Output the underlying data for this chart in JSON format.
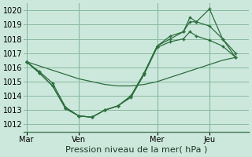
{
  "background_color": "#cce8dc",
  "grid_color": "#88b8a0",
  "line_color": "#2d6e3e",
  "title": "Pression niveau de la mer( hPa )",
  "ylim": [
    1011.5,
    1020.5
  ],
  "yticks": [
    1012,
    1013,
    1014,
    1015,
    1016,
    1017,
    1018,
    1019,
    1020
  ],
  "xtick_labels": [
    "Mar",
    "Ven",
    "Mer",
    "Jeu"
  ],
  "xtick_positions": [
    0,
    2,
    5,
    7
  ],
  "vline_positions": [
    0,
    2,
    5,
    7
  ],
  "xlim": [
    -0.1,
    8.5
  ],
  "series": [
    {
      "x": [
        0,
        0.5,
        1.0,
        1.5,
        2.0,
        2.5,
        3.0,
        3.5,
        4.0,
        4.5,
        5.0,
        5.5,
        6.0,
        6.5,
        7.0,
        7.5,
        8.0
      ],
      "y": [
        1016.4,
        1016.1,
        1015.8,
        1015.5,
        1015.2,
        1015.0,
        1014.8,
        1014.7,
        1014.7,
        1014.8,
        1015.0,
        1015.3,
        1015.6,
        1015.9,
        1016.2,
        1016.5,
        1016.7
      ],
      "markers": false
    },
    {
      "x": [
        0,
        0.5,
        1.0,
        1.5,
        2.0,
        2.5,
        3.0,
        3.5,
        4.0,
        4.5,
        5.0,
        5.5,
        6.0,
        6.25,
        6.5,
        7.0,
        7.5,
        8.0
      ],
      "y": [
        1016.4,
        1015.7,
        1014.9,
        1013.2,
        1012.6,
        1012.5,
        1013.0,
        1013.3,
        1013.9,
        1015.5,
        1017.4,
        1017.8,
        1018.0,
        1018.5,
        1018.2,
        1017.9,
        1017.5,
        1016.7
      ],
      "markers": true
    },
    {
      "x": [
        0,
        0.5,
        1.0,
        1.5,
        2.0,
        2.5,
        3.0,
        3.5,
        4.0,
        4.5,
        5.0,
        5.5,
        6.0,
        6.25,
        6.5,
        7.0,
        7.5,
        8.0
      ],
      "y": [
        1016.4,
        1015.6,
        1014.7,
        1013.1,
        1012.6,
        1012.5,
        1013.0,
        1013.3,
        1014.0,
        1015.6,
        1017.5,
        1018.0,
        1018.5,
        1019.2,
        1019.2,
        1018.9,
        1018.0,
        1016.7
      ],
      "markers": true
    },
    {
      "x": [
        0,
        0.5,
        1.0,
        1.5,
        2.0,
        2.5,
        3.0,
        3.5,
        4.0,
        4.5,
        5.0,
        5.5,
        6.0,
        6.25,
        6.5,
        7.0,
        7.5,
        8.0
      ],
      "y": [
        1016.4,
        1015.6,
        1014.7,
        1013.1,
        1012.6,
        1012.5,
        1013.0,
        1013.3,
        1014.0,
        1015.6,
        1017.5,
        1018.2,
        1018.5,
        1019.5,
        1019.2,
        1020.1,
        1018.0,
        1017.0
      ],
      "markers": true
    }
  ]
}
